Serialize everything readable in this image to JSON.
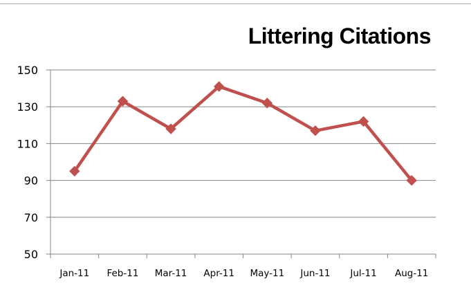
{
  "chart_data": {
    "type": "line",
    "title": "Littering Citations",
    "xlabel": "",
    "ylabel": "",
    "categories": [
      "Jan-11",
      "Feb-11",
      "Mar-11",
      "Apr-11",
      "May-11",
      "Jun-11",
      "Jul-11",
      "Aug-11"
    ],
    "series": [
      {
        "values": [
          95,
          133,
          118,
          141,
          132,
          117,
          122,
          90
        ],
        "color": "#c0504d",
        "marker": "diamond"
      }
    ],
    "ylim": [
      50,
      150
    ],
    "yticks": [
      50,
      70,
      90,
      110,
      130,
      150
    ],
    "grid": true,
    "legend": "none"
  }
}
